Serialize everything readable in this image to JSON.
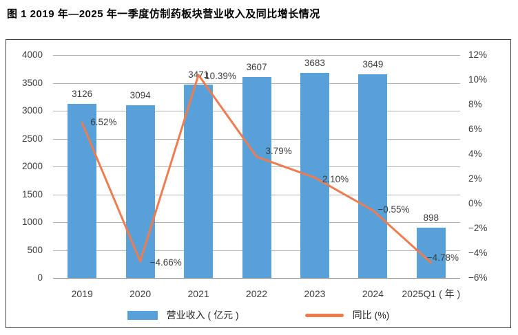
{
  "page": {
    "title": "图 1  2019 年—2025 年一季度仿制药板块营业收入及同比增长情况"
  },
  "colors": {
    "bar": "#57a1d8",
    "line": "#ef7b50",
    "grid": "#b0b0b0",
    "axis_line": "#8a8a8a",
    "frame": "#3d3d3d",
    "text": "#3c3c3c",
    "title_text": "#000000"
  },
  "legend": {
    "items": [
      {
        "label": "营业收入 ( 亿元 )",
        "swatch": "bar-swatch"
      },
      {
        "label": "同比 (%)",
        "swatch": "line-swatch"
      }
    ]
  },
  "chart_data": {
    "type": "combo (bar + line)",
    "title": "2019 年—2025 年一季度仿制药板块营业收入及同比增长情况",
    "categories": [
      "2019",
      "2020",
      "2021",
      "2022",
      "2023",
      "2024",
      "2025Q1"
    ],
    "x_tick_labels": [
      "2019",
      "2020",
      "2021",
      "2022",
      "2023",
      "2024",
      "2025Q1 ( 年 )"
    ],
    "series": [
      {
        "name": "营业收入 ( 亿元 )",
        "type": "bar",
        "axis": "left",
        "color": "#57a1d8",
        "values": [
          3126,
          3094,
          3471,
          3607,
          3683,
          3649,
          898
        ]
      },
      {
        "name": "同比 (%)",
        "type": "line",
        "axis": "right",
        "color": "#ef7b50",
        "values": [
          6.52,
          -4.66,
          10.39,
          3.79,
          2.1,
          -0.55,
          -4.78
        ]
      }
    ],
    "bar_value_labels": [
      "3126",
      "3094",
      "3471",
      "3607",
      "3683",
      "3649",
      "898"
    ],
    "line_value_labels": [
      "6.52%",
      "−4.66%",
      "10.39%",
      "3.79%",
      "2.10%",
      "−0.55%",
      "−4.78%"
    ],
    "left_axis": {
      "min": 0,
      "max": 4000,
      "step": 500,
      "ticks": [
        "4000",
        "3500",
        "3000",
        "2500",
        "2000",
        "1500",
        "1000",
        "500",
        "0"
      ]
    },
    "right_axis": {
      "min": -6,
      "max": 12,
      "step": 2,
      "ticks": [
        "12%",
        "10%",
        "8%",
        "6%",
        "4%",
        "2%",
        "0%",
        "−2%",
        "−4%",
        "−6%"
      ]
    },
    "grid": true,
    "legend_position": "bottom-inside-frame"
  }
}
